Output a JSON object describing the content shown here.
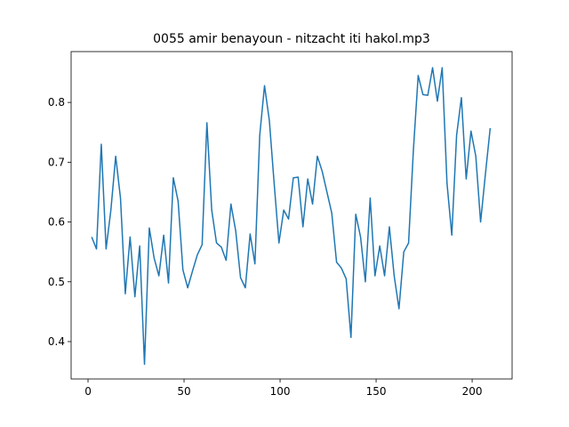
{
  "chart_data": {
    "type": "line",
    "title": "0055 amir benayoun - nitzacht iti hakol.mp3",
    "x": [
      1.9,
      4.4,
      6.9,
      9.4,
      11.9,
      14.4,
      16.9,
      19.4,
      21.9,
      24.4,
      26.9,
      29.4,
      31.9,
      34.4,
      36.9,
      39.4,
      41.9,
      44.4,
      46.9,
      49.4,
      51.9,
      54.4,
      56.9,
      59.4,
      61.9,
      64.4,
      66.9,
      69.4,
      71.9,
      74.4,
      76.9,
      79.4,
      81.9,
      84.4,
      86.9,
      89.4,
      91.9,
      94.4,
      96.9,
      99.4,
      101.9,
      104.4,
      106.9,
      109.4,
      111.9,
      114.4,
      116.9,
      119.4,
      121.9,
      124.4,
      126.9,
      129.4,
      131.9,
      134.4,
      136.9,
      139.4,
      141.9,
      144.4,
      146.9,
      149.4,
      151.9,
      154.4,
      156.9,
      159.4,
      161.9,
      164.4,
      166.9,
      169.4,
      171.9,
      174.4,
      176.9,
      179.4,
      181.9,
      184.4,
      186.9,
      189.4,
      191.9,
      194.4,
      196.9,
      199.4,
      201.9,
      204.4,
      206.9,
      209.4
    ],
    "series": [
      {
        "color": "#1f77b4",
        "values": [
          0.575,
          0.555,
          0.73,
          0.555,
          0.62,
          0.71,
          0.64,
          0.48,
          0.575,
          0.475,
          0.56,
          0.362,
          0.59,
          0.54,
          0.51,
          0.578,
          0.498,
          0.674,
          0.635,
          0.52,
          0.49,
          0.518,
          0.545,
          0.562,
          0.766,
          0.62,
          0.565,
          0.558,
          0.536,
          0.63,
          0.585,
          0.507,
          0.49,
          0.58,
          0.53,
          0.745,
          0.828,
          0.77,
          0.665,
          0.565,
          0.62,
          0.605,
          0.674,
          0.675,
          0.592,
          0.672,
          0.63,
          0.71,
          0.685,
          0.65,
          0.615,
          0.533,
          0.523,
          0.505,
          0.407,
          0.613,
          0.575,
          0.5,
          0.64,
          0.51,
          0.56,
          0.51,
          0.592,
          0.51,
          0.455,
          0.55,
          0.565,
          0.72,
          0.845,
          0.813,
          0.812,
          0.858,
          0.802,
          0.858,
          0.665,
          0.578,
          0.745,
          0.808,
          0.672,
          0.752,
          0.71,
          0.6,
          0.68,
          0.757
        ]
      }
    ],
    "xlim": [
      -8.8,
      220.8
    ],
    "xticks": [
      0,
      50,
      100,
      150,
      200
    ],
    "ylim": [
      0.3375,
      0.885
    ],
    "yticks": [
      0.4,
      0.5,
      0.6,
      0.7,
      0.8
    ]
  }
}
